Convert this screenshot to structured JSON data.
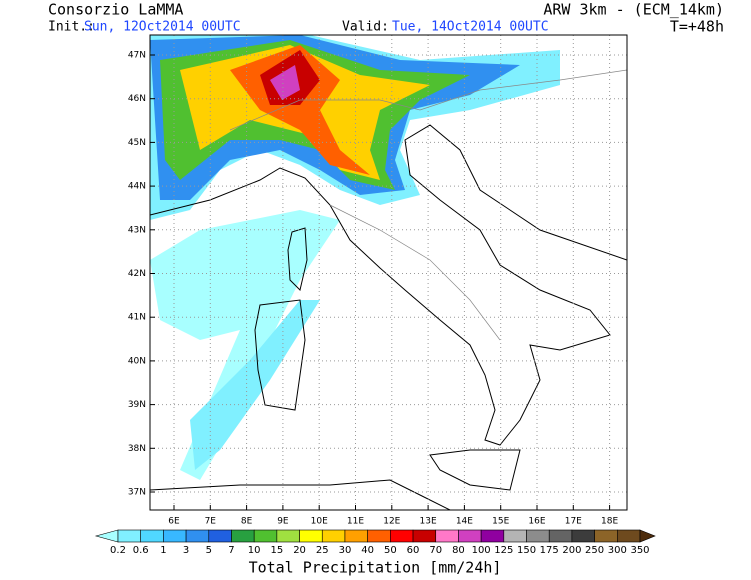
{
  "header": {
    "title": "Consorzio LaMMA",
    "model": "ARW 3km - (ECM_14km)",
    "init_label": "Init.:",
    "init_time": "Sun, 12Oct2014 00UTC",
    "valid_label": "Valid:",
    "valid_time": "Tue, 14Oct2014 00UTC",
    "lead": "T=+48h"
  },
  "map": {
    "lat_labels": [
      "47N",
      "46N",
      "45N",
      "44N",
      "43N",
      "42N",
      "41N",
      "40N",
      "39N",
      "38N",
      "37N"
    ],
    "lon_labels": [
      "6E",
      "7E",
      "8E",
      "9E",
      "10E",
      "11E",
      "12E",
      "13E",
      "14E",
      "15E",
      "16E",
      "17E",
      "18E"
    ]
  },
  "legend": {
    "labels": [
      "0.2",
      "0.6",
      "1",
      "3",
      "5",
      "7",
      "10",
      "15",
      "20",
      "25",
      "30",
      "40",
      "50",
      "60",
      "70",
      "80",
      "100",
      "125",
      "150",
      "175",
      "200",
      "250",
      "300",
      "350"
    ],
    "colors": [
      "#a8ffff",
      "#80f0ff",
      "#50d8ff",
      "#38b8ff",
      "#3090f0",
      "#2060e0",
      "#28a040",
      "#50c030",
      "#a0e040",
      "#ffff00",
      "#ffd000",
      "#ffa000",
      "#ff6000",
      "#ff0000",
      "#c80000",
      "#ff78c8",
      "#d040c0",
      "#9000a0",
      "#b4b4b4",
      "#8c8c8c",
      "#646464",
      "#3c3c3c",
      "#8c6428",
      "#6e4a1e",
      "#4e2c0c"
    ],
    "title": "Total Precipitation [mm/24h]"
  }
}
